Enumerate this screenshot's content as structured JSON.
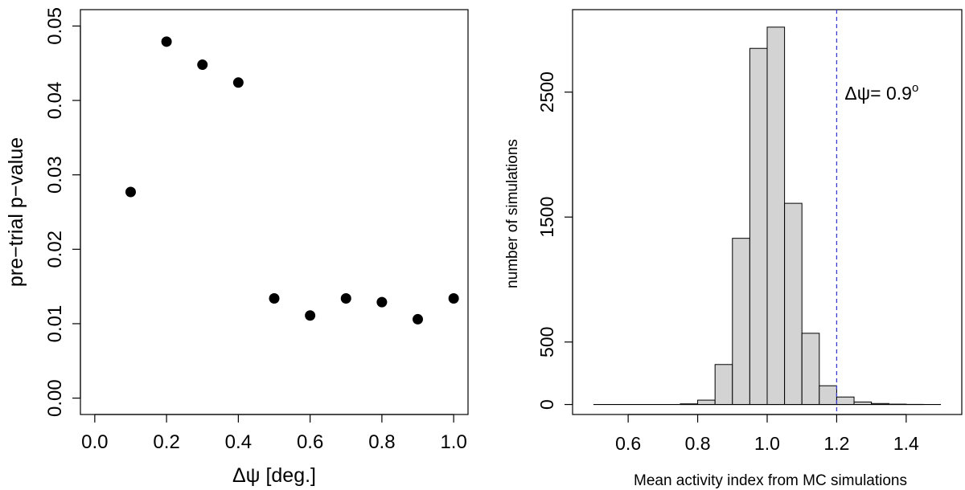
{
  "chart_data": [
    {
      "type": "scatter",
      "title": "",
      "xlabel": "Δψ [deg.]",
      "ylabel": "pre−trial p−value",
      "xlim": [
        -0.04,
        1.04
      ],
      "ylim": [
        -0.0022,
        0.0522
      ],
      "x_ticks": [
        0.0,
        0.2,
        0.4,
        0.6,
        0.8,
        1.0
      ],
      "x_tick_labels": [
        "0.0",
        "0.2",
        "0.4",
        "0.6",
        "0.8",
        "1.0"
      ],
      "y_ticks": [
        0.0,
        0.01,
        0.02,
        0.03,
        0.04,
        0.05
      ],
      "y_tick_labels": [
        "0.00",
        "0.01",
        "0.02",
        "0.03",
        "0.04",
        "0.05"
      ],
      "grid": false,
      "series": [
        {
          "name": "pre-trial p-value",
          "x": [
            0.1,
            0.2,
            0.3,
            0.4,
            0.5,
            0.6,
            0.7,
            0.8,
            0.9,
            1.0
          ],
          "y": [
            0.0277,
            0.0479,
            0.0448,
            0.0424,
            0.0134,
            0.0111,
            0.0134,
            0.0129,
            0.0106,
            0.0134
          ]
        }
      ]
    },
    {
      "type": "bar",
      "title": "",
      "xlabel": "Mean activity index from MC simulations",
      "ylabel": "number of simulations",
      "xlim": [
        0.44,
        1.56
      ],
      "ylim": [
        -80,
        3160
      ],
      "x_ticks": [
        0.6,
        0.8,
        1.0,
        1.2,
        1.4
      ],
      "x_tick_labels": [
        "0.6",
        "0.8",
        "1.0",
        "1.2",
        "1.4"
      ],
      "y_ticks": [
        0,
        500,
        1500,
        2500
      ],
      "y_tick_labels": [
        "0",
        "500",
        "1500",
        "2500"
      ],
      "grid": false,
      "bin_edges": [
        0.5,
        0.55,
        0.6,
        0.65,
        0.7,
        0.75,
        0.8,
        0.85,
        0.9,
        0.95,
        1.0,
        1.05,
        1.1,
        1.15,
        1.2,
        1.25,
        1.3,
        1.35,
        1.4,
        1.45,
        1.5
      ],
      "values": [
        0,
        0,
        0,
        0,
        0,
        5,
        35,
        320,
        1330,
        2850,
        3020,
        1610,
        570,
        150,
        60,
        20,
        8,
        3,
        1,
        0
      ],
      "bar_color": "#d3d3d3",
      "reference_line": {
        "x": 1.2,
        "color": "#3b3bd6",
        "style": "dashed",
        "annotation": {
          "text": "Δψ= 0.9",
          "superscript": "o"
        }
      }
    }
  ]
}
